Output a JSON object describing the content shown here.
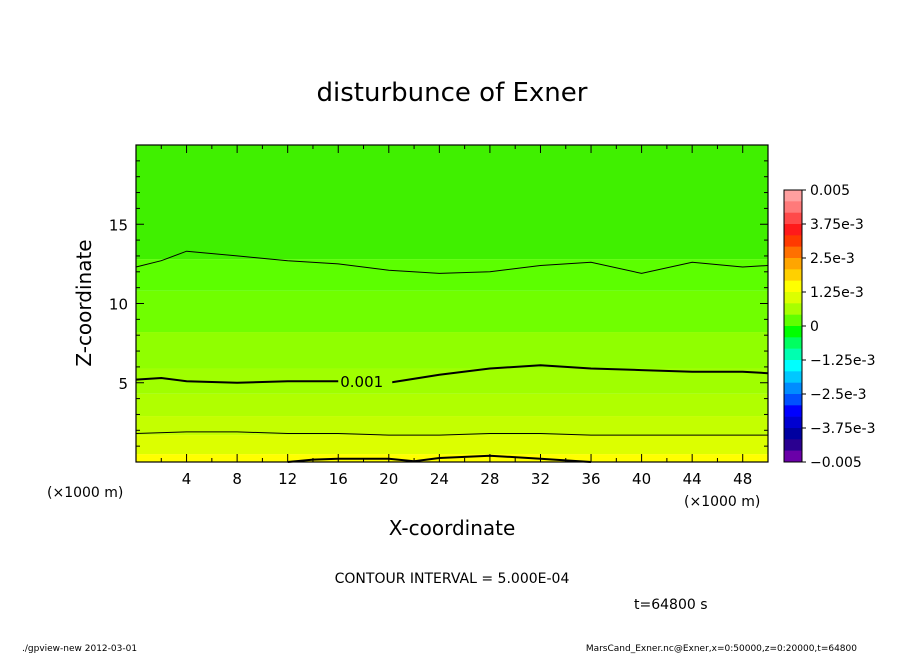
{
  "chart_data": {
    "type": "contour",
    "title": "disturbunce of Exner",
    "xlabel": "X-coordinate",
    "ylabel": "Z-coordinate",
    "x_unit": "(×1000 m)",
    "y_unit": "(×1000 m)",
    "xlim": [
      0,
      50
    ],
    "ylim": [
      0,
      20
    ],
    "x_ticks": [
      4,
      8,
      12,
      16,
      20,
      24,
      28,
      32,
      36,
      40,
      44,
      48
    ],
    "y_ticks": [
      5,
      10,
      15
    ],
    "contour_label": "0.001",
    "contour_interval": "CONTOUR INTERVAL = 5.000E-04",
    "time": "t=64800 s",
    "colorbar": {
      "range": [
        -0.005,
        0.005
      ],
      "labels": [
        "0.005",
        "3.75e-3",
        "2.5e-3",
        "1.25e-3",
        "0",
        "-1.25e-3",
        "-2.5e-3",
        "-3.75e-3",
        "-0.005"
      ],
      "colors": [
        "#ff9f9f",
        "#ff7a7a",
        "#ff4a4a",
        "#ff1a1a",
        "#ff3a00",
        "#ff7000",
        "#ffa500",
        "#ffd000",
        "#ffff00",
        "#dcff00",
        "#a8ff00",
        "#60ff00",
        "#00ff00",
        "#00ff60",
        "#00ffb0",
        "#00ffff",
        "#00c8ff",
        "#008cff",
        "#0050ff",
        "#0000ff",
        "#0000d0",
        "#0000a0",
        "#2a0090",
        "#6a00a8"
      ]
    },
    "bands": [
      {
        "z_from": 0.0,
        "z_to": 0.5,
        "color": "#ffff00"
      },
      {
        "z_from": 0.5,
        "z_to": 1.7,
        "color": "#dcff00"
      },
      {
        "z_from": 1.7,
        "z_to": 2.9,
        "color": "#c4ff00"
      },
      {
        "z_from": 2.9,
        "z_to": 4.3,
        "color": "#b0ff00"
      },
      {
        "z_from": 4.3,
        "z_to": 5.9,
        "color": "#a0ff00"
      },
      {
        "z_from": 5.9,
        "z_to": 8.2,
        "color": "#90ff00"
      },
      {
        "z_from": 8.2,
        "z_to": 10.8,
        "color": "#70ff00"
      },
      {
        "z_from": 10.8,
        "z_to": 12.8,
        "color": "#5cff00"
      },
      {
        "z_from": 12.8,
        "z_to": 20.0,
        "color": "#40f000"
      }
    ],
    "contours": [
      {
        "weight": "thin",
        "x": [
          0,
          2,
          4,
          8,
          12,
          16,
          20,
          24,
          28,
          32,
          36,
          40,
          44,
          48,
          50
        ],
        "z": [
          12.3,
          12.7,
          13.3,
          13.0,
          12.7,
          12.5,
          12.1,
          11.9,
          12.0,
          12.4,
          12.6,
          11.9,
          12.6,
          12.3,
          12.4
        ]
      },
      {
        "weight": "thick",
        "x": [
          0,
          2,
          4,
          8,
          12,
          16,
          20,
          24,
          28,
          32,
          36,
          40,
          44,
          48,
          50
        ],
        "z": [
          5.2,
          5.3,
          5.1,
          5.0,
          5.1,
          5.1,
          5.0,
          5.5,
          5.9,
          6.1,
          5.9,
          5.8,
          5.7,
          5.7,
          5.6
        ]
      },
      {
        "weight": "thin",
        "x": [
          0,
          4,
          8,
          12,
          16,
          20,
          24,
          28,
          32,
          36,
          40,
          44,
          48,
          50
        ],
        "z": [
          1.8,
          1.9,
          1.9,
          1.8,
          1.8,
          1.7,
          1.7,
          1.8,
          1.8,
          1.7,
          1.7,
          1.7,
          1.7,
          1.7
        ]
      },
      {
        "weight": "thick",
        "x": [
          12,
          14,
          16,
          20,
          22,
          24,
          28,
          32,
          34,
          36
        ],
        "z": [
          0.0,
          0.15,
          0.2,
          0.2,
          0.05,
          0.25,
          0.4,
          0.2,
          0.1,
          0.0
        ]
      }
    ]
  },
  "footer": {
    "left": "./gpview-new   2012-03-01",
    "right": "MarsCand_Exner.nc@Exner,x=0:50000,z=0:20000,t=64800"
  }
}
